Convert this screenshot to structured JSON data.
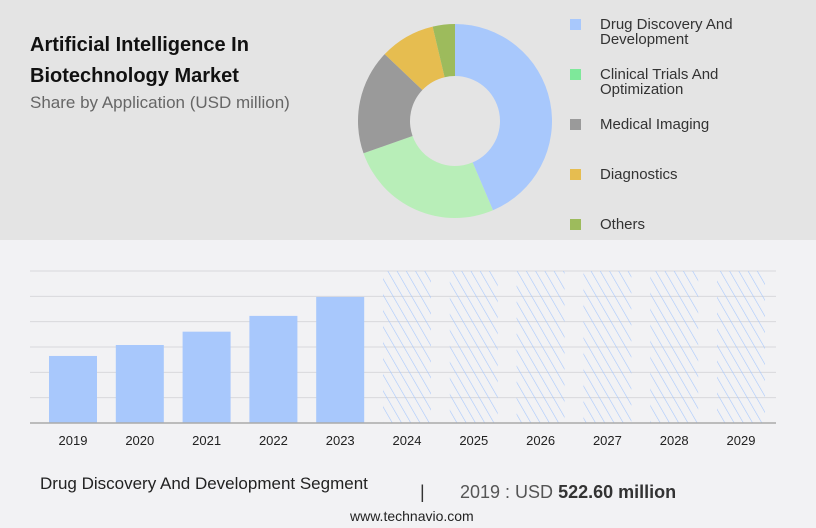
{
  "header": {
    "title": "Artificial Intelligence In Biotechnology Market",
    "subtitle": "Share by Application (USD million)"
  },
  "chart_data": [
    {
      "type": "pie",
      "donut": true,
      "categories": [
        "Drug Discovery And Development",
        "Clinical Trials And Optimization",
        "Medical Imaging",
        "Diagnostics",
        "Others"
      ],
      "values": [
        43.6,
        26.0,
        17.5,
        9.2,
        3.7
      ],
      "colors": [
        "#a8c8fc",
        "#b8eeb8",
        "#9a9a9a",
        "#e6bd50",
        "#9dbb5c"
      ],
      "legend_colors": [
        "#a8c8fc",
        "#7ee89a",
        "#9a9a9a",
        "#e6bd50",
        "#9dbb5c"
      ],
      "legend": "right"
    },
    {
      "type": "bar",
      "categories": [
        "2019",
        "2020",
        "2021",
        "2022",
        "2023",
        "2024",
        "2025",
        "2026",
        "2027",
        "2028",
        "2029"
      ],
      "values": [
        522.6,
        608,
        712,
        835,
        983,
        null,
        null,
        null,
        null,
        null,
        null
      ],
      "forecast_years": [
        "2024",
        "2025",
        "2026",
        "2027",
        "2028",
        "2029"
      ],
      "ylim": [
        0,
        1185
      ],
      "grid": true,
      "color": "#a8c8fc"
    }
  ],
  "footer": {
    "segment": "Drug Discovery And Development Segment",
    "separator": "|",
    "year_label": "2019 : USD",
    "value": "522.60 million",
    "website": "www.technavio.com"
  }
}
